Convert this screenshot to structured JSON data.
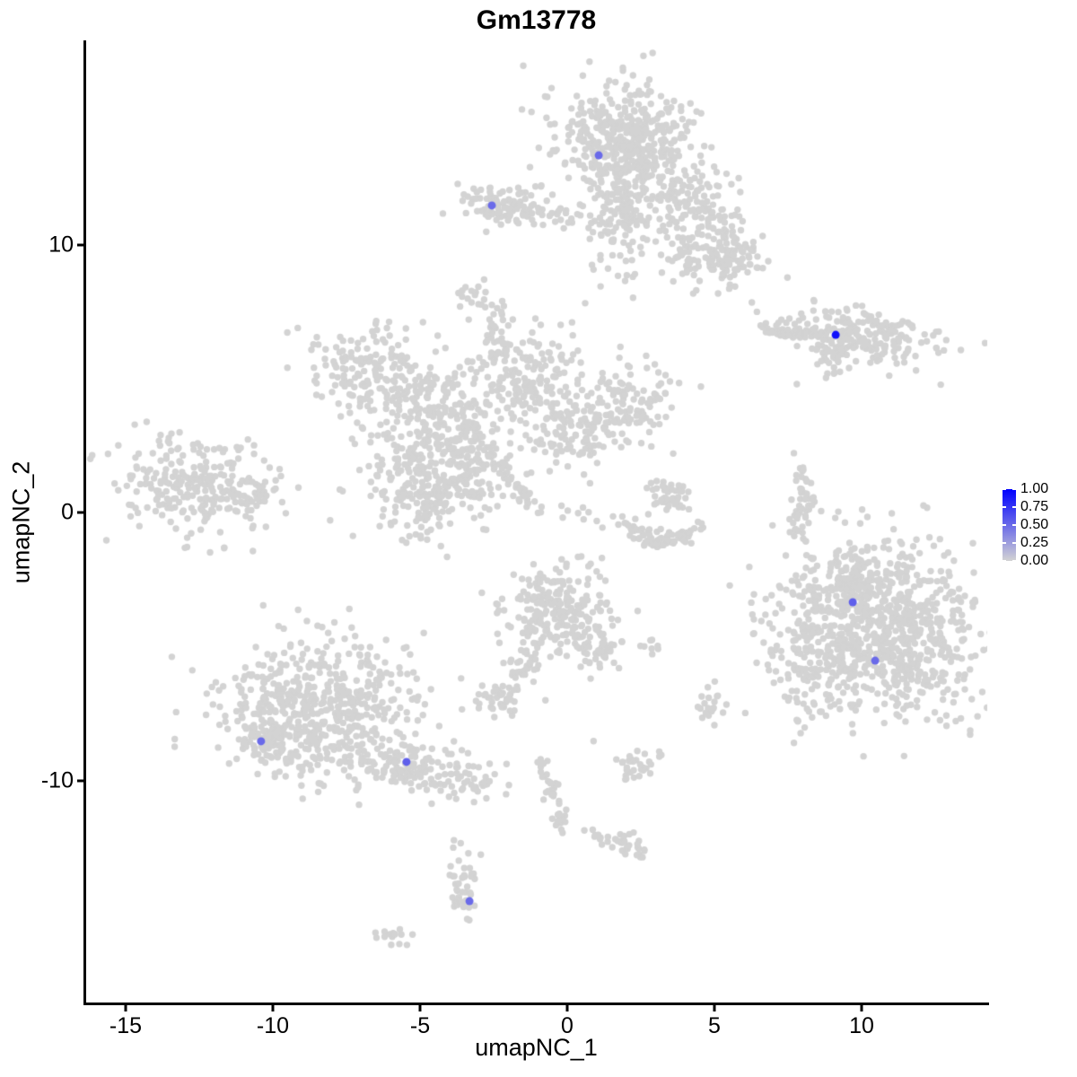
{
  "figure": {
    "title": "Gm13778"
  },
  "chart_data": {
    "type": "scatter",
    "title": "Gm13778",
    "xlabel": "umapNC_1",
    "ylabel": "umapNC_2",
    "xlim": [
      -16.4,
      14.3
    ],
    "ylim": [
      -18.3,
      17.6
    ],
    "x_ticks": [
      -15,
      -10,
      -5,
      0,
      5,
      10
    ],
    "y_ticks": [
      10,
      0,
      -10
    ],
    "grid": false,
    "legend": {
      "position": "right",
      "labels": [
        "1.00",
        "0.75",
        "0.50",
        "0.25",
        "0.00"
      ],
      "values": [
        1.0,
        0.75,
        0.5,
        0.25,
        0.0
      ],
      "low_color": "#D3D3D3",
      "high_color": "#0000FF"
    },
    "point_color_background": "#D3D3D3",
    "background_clusters": [
      {
        "x": 1.98,
        "y": 13.94,
        "sx": 1.22,
        "sy": 1.01,
        "n": 420,
        "rot": 0
      },
      {
        "x": 1.83,
        "y": 11.26,
        "sx": 0.49,
        "sy": 1.27,
        "n": 150,
        "rot": 0
      },
      {
        "x": 4.05,
        "y": 11.59,
        "sx": 1.07,
        "sy": 0.67,
        "n": 130,
        "rot": -30
      },
      {
        "x": 4.82,
        "y": 9.58,
        "sx": 0.91,
        "sy": 0.54,
        "n": 90,
        "rot": -20
      },
      {
        "x": 5.58,
        "y": 9.75,
        "sx": 0.76,
        "sy": 0.6,
        "n": 70,
        "rot": 0
      },
      {
        "x": -2.2,
        "y": 11.52,
        "sx": 0.76,
        "sy": 0.4,
        "n": 90,
        "rot": 0
      },
      {
        "x": -0.52,
        "y": 11.09,
        "sx": 0.85,
        "sy": 0.27,
        "n": 35,
        "rot": 0
      },
      {
        "x": -3.11,
        "y": 8.07,
        "sx": 0.37,
        "sy": 0.27,
        "n": 18,
        "rot": 0
      },
      {
        "x": -6.62,
        "y": 5.23,
        "sx": 1.16,
        "sy": 0.74,
        "n": 180,
        "rot": -20
      },
      {
        "x": -4.79,
        "y": 3.38,
        "sx": 0.76,
        "sy": 0.84,
        "n": 120,
        "rot": 0
      },
      {
        "x": -4.94,
        "y": 1.04,
        "sx": 1.07,
        "sy": 1.01,
        "n": 220,
        "rot": 0
      },
      {
        "x": -3.26,
        "y": 1.71,
        "sx": 0.61,
        "sy": 0.84,
        "n": 100,
        "rot": 0
      },
      {
        "x": -1.28,
        "y": 5.06,
        "sx": 0.85,
        "sy": 0.94,
        "n": 160,
        "rot": 0
      },
      {
        "x": 0.24,
        "y": 3.05,
        "sx": 0.91,
        "sy": 0.67,
        "n": 120,
        "rot": 25
      },
      {
        "x": 2.07,
        "y": 4.05,
        "sx": 0.85,
        "sy": 0.74,
        "n": 110,
        "rot": 0
      },
      {
        "x": -3.41,
        "y": 3.38,
        "sx": 0.46,
        "sy": 0.5,
        "n": 40,
        "rot": 0
      },
      {
        "x": -2.35,
        "y": 6.4,
        "sx": 0.24,
        "sy": 0.84,
        "n": 35,
        "rot": 0
      },
      {
        "x": -12.71,
        "y": 1.04,
        "sx": 1.28,
        "sy": 0.84,
        "n": 260,
        "rot": -10
      },
      {
        "x": -10.58,
        "y": 0.87,
        "sx": 0.46,
        "sy": 0.46,
        "n": 30,
        "rot": 0
      },
      {
        "x": 3.29,
        "y": 0.6,
        "sx": 0.43,
        "sy": 0.4,
        "n": 45,
        "rot": 0
      },
      {
        "x": 8.02,
        "y": 0.37,
        "sx": 0.21,
        "sy": 0.94,
        "n": 50,
        "rot": 0
      },
      {
        "x": 10.0,
        "y": 6.57,
        "sx": 1.37,
        "sy": 0.47,
        "n": 220,
        "rot": -8
      },
      {
        "x": 8.93,
        "y": 5.8,
        "sx": 0.37,
        "sy": 0.27,
        "n": 22,
        "rot": 40
      },
      {
        "x": 10.76,
        "y": -4.49,
        "sx": 1.68,
        "sy": 1.61,
        "n": 850,
        "rot": 0
      },
      {
        "x": 8.38,
        "y": -4.32,
        "sx": 0.85,
        "sy": 1.51,
        "n": 140,
        "rot": 0
      },
      {
        "x": 9.7,
        "y": -2.31,
        "sx": 0.67,
        "sy": 0.5,
        "n": 60,
        "rot": 0
      },
      {
        "x": -8.29,
        "y": -7.34,
        "sx": 1.68,
        "sy": 1.34,
        "n": 550,
        "rot": 0
      },
      {
        "x": -10.12,
        "y": -8.41,
        "sx": 0.55,
        "sy": 0.47,
        "n": 80,
        "rot": 0
      },
      {
        "x": -5.0,
        "y": -9.68,
        "sx": 1.28,
        "sy": 0.4,
        "n": 150,
        "rot": -10
      },
      {
        "x": -0.21,
        "y": -3.65,
        "sx": 0.91,
        "sy": 0.87,
        "n": 220,
        "rot": 0
      },
      {
        "x": 0.95,
        "y": -5.06,
        "sx": 0.37,
        "sy": 0.47,
        "n": 45,
        "rot": 0
      },
      {
        "x": -2.35,
        "y": -6.83,
        "sx": 0.49,
        "sy": 0.34,
        "n": 45,
        "rot": 0
      },
      {
        "x": -1.34,
        "y": -5.73,
        "sx": 0.37,
        "sy": 0.2,
        "n": 22,
        "rot": 45
      },
      {
        "x": 2.74,
        "y": -4.96,
        "sx": 0.15,
        "sy": 0.15,
        "n": 8,
        "rot": 0
      },
      {
        "x": 4.88,
        "y": -7.2,
        "sx": 0.24,
        "sy": 0.4,
        "n": 20,
        "rot": 0
      },
      {
        "x": 2.44,
        "y": -9.38,
        "sx": 0.43,
        "sy": 0.3,
        "n": 32,
        "rot": 0
      },
      {
        "x": 2.16,
        "y": -12.46,
        "sx": 0.27,
        "sy": 0.2,
        "n": 22,
        "rot": 0
      },
      {
        "x": -3.54,
        "y": -14.04,
        "sx": 0.27,
        "sy": 0.74,
        "n": 45,
        "rot": 0
      },
      {
        "x": -5.98,
        "y": -15.85,
        "sx": 0.37,
        "sy": 0.17,
        "n": 15,
        "rot": 0
      }
    ],
    "connector_strands": [
      {
        "x1": -2.65,
        "y1": 2.21,
        "x2": -1.28,
        "y2": 0.37,
        "n": 45,
        "jitter": 0.12
      },
      {
        "x1": 1.92,
        "y1": -0.4,
        "x2": 3.2,
        "y2": -1.17,
        "n": 45,
        "jitter": 0.15
      },
      {
        "x1": 3.2,
        "y1": -1.17,
        "x2": 4.57,
        "y2": -0.57,
        "n": 40,
        "jitter": 0.15
      },
      {
        "x1": 6.71,
        "y1": 6.8,
        "x2": 8.72,
        "y2": 6.63,
        "n": 50,
        "jitter": 0.1
      },
      {
        "x1": -0.91,
        "y1": -9.18,
        "x2": -0.12,
        "y2": -11.76,
        "n": 40,
        "jitter": 0.15
      },
      {
        "x1": 0.24,
        "y1": -11.86,
        "x2": 2.07,
        "y2": -12.43,
        "n": 18,
        "jitter": 0.12
      },
      {
        "x1": -5.6,
        "y1": 4.5,
        "x2": -2.4,
        "y2": 5.5,
        "n": 25,
        "jitter": 0.2
      },
      {
        "x1": -1.2,
        "y1": 0.3,
        "x2": 1.8,
        "y2": -0.3,
        "n": 15,
        "jitter": 0.2
      },
      {
        "x1": -0.6,
        "y1": -4.5,
        "x2": -2.0,
        "y2": -5.6,
        "n": 15,
        "jitter": 0.15
      }
    ],
    "scattered_points": [
      [
        -2.5,
        7.4
      ],
      [
        -0.9,
        7.0
      ],
      [
        0.61,
        7.81
      ],
      [
        7.8,
        4.79
      ],
      [
        -2.9,
        -3.0
      ],
      [
        6.34,
        -3.99
      ],
      [
        -4.9,
        7.1
      ],
      [
        -4.4,
        6.6
      ],
      [
        2.3,
        8.9
      ],
      [
        -0.5,
        6.3
      ],
      [
        3.6,
        2.2
      ],
      [
        1.0,
        -2.2
      ]
    ],
    "expressing_cells": [
      {
        "x": 1.07,
        "y": 13.33,
        "value": 0.5
      },
      {
        "x": -2.56,
        "y": 11.46,
        "value": 0.5
      },
      {
        "x": 9.12,
        "y": 6.63,
        "value": 0.92
      },
      {
        "x": 9.7,
        "y": -3.35,
        "value": 0.55
      },
      {
        "x": 10.46,
        "y": -5.53,
        "value": 0.5
      },
      {
        "x": -10.4,
        "y": -8.54,
        "value": 0.5
      },
      {
        "x": -5.46,
        "y": -9.31,
        "value": 0.55
      },
      {
        "x": -3.32,
        "y": -14.51,
        "value": 0.5
      }
    ]
  }
}
